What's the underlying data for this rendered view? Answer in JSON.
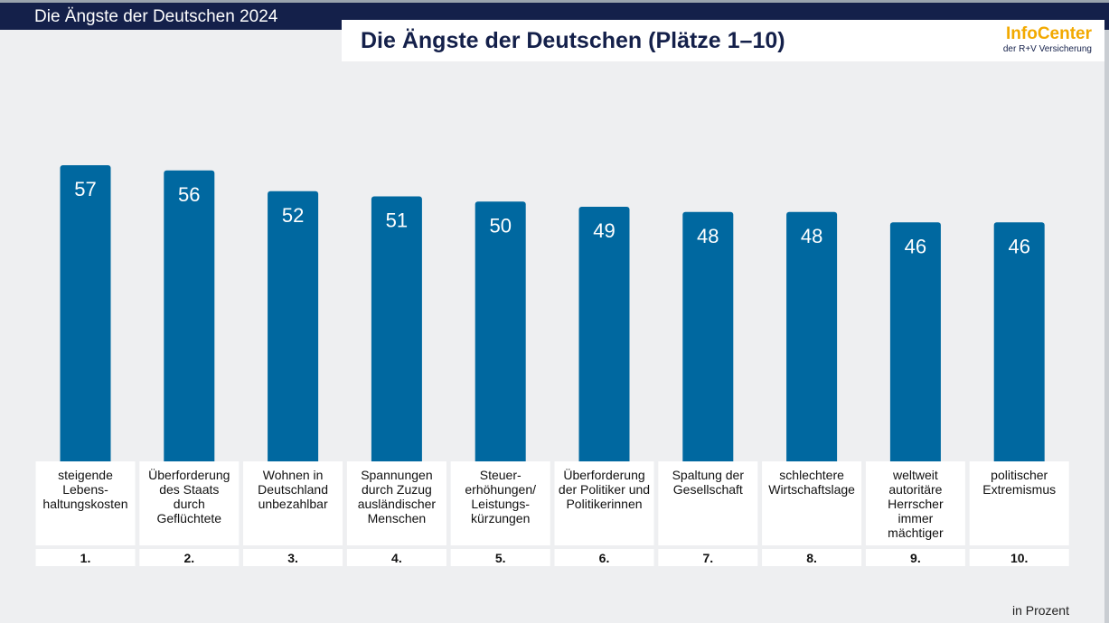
{
  "header": {
    "label": "Die Ängste der Deutschen 2024"
  },
  "title": "Die Ängste der Deutschen (Plätze 1–10)",
  "logo": {
    "main": "InfoCenter",
    "sub": "der R+V Versicherung"
  },
  "footnote": "in Prozent",
  "colors": {
    "bar": "#0068a0",
    "header": "#14204a",
    "logo_accent": "#f2a900"
  },
  "chart_data": {
    "type": "bar",
    "categories": [
      [
        "steigende",
        "Lebens-",
        "haltungskosten"
      ],
      [
        "Überforderung",
        "des Staats",
        "durch",
        "Geflüchtete"
      ],
      [
        "Wohnen in",
        "Deutschland",
        "unbezahlbar"
      ],
      [
        "Spannungen",
        "durch Zuzug",
        "ausländischer",
        "Menschen"
      ],
      [
        "Steuer-",
        "erhöhungen/",
        "Leistungs-",
        "kürzungen"
      ],
      [
        "Überforderung",
        "der Politiker und",
        "Politikerinnen"
      ],
      [
        "Spaltung der",
        "Gesellschaft"
      ],
      [
        "schlechtere",
        "Wirtschaftslage"
      ],
      [
        "weltweit",
        "autoritäre",
        "Herrscher",
        "immer",
        "mächtiger"
      ],
      [
        "politischer",
        "Extremismus"
      ]
    ],
    "ranks": [
      "1.",
      "2.",
      "3.",
      "4.",
      "5.",
      "6.",
      "7.",
      "8.",
      "9.",
      "10."
    ],
    "values": [
      57,
      56,
      52,
      51,
      50,
      49,
      48,
      48,
      46,
      46
    ],
    "unit": "in Prozent",
    "ylim": [
      0,
      57
    ],
    "grid": false,
    "data_labels": "inside-top"
  }
}
